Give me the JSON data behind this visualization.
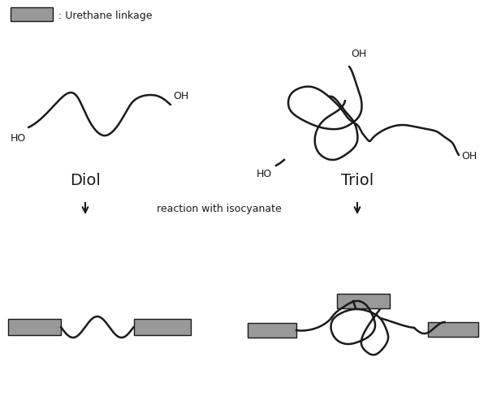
{
  "bg_color": "#ffffff",
  "line_color": "#1a1a1a",
  "rect_color": "#999999",
  "rect_edge": "#1a1a1a",
  "legend_text": ": Urethane linkage",
  "diol_label": "Diol",
  "triol_label": "Triol",
  "arrow_label": "reaction with isocyanate",
  "figsize": [
    6.01,
    4.89
  ],
  "dpi": 100
}
